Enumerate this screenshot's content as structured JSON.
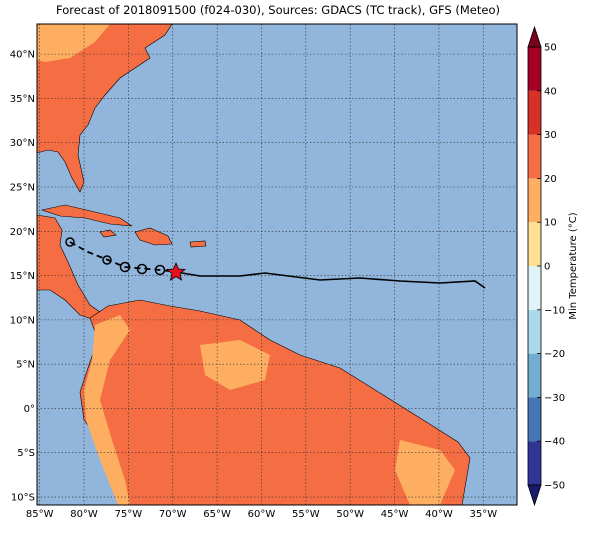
{
  "map": {
    "title": "Forecast of 2018091500 (f024-030), Sources: GDACS (TC track), GFS (Meteo)",
    "xlim": [
      -85.3,
      -31.2
    ],
    "ylim": [
      -10.9,
      43.4
    ],
    "xticks": [
      {
        "value": -85,
        "label": "85°W"
      },
      {
        "value": -80,
        "label": "80°W"
      },
      {
        "value": -75,
        "label": "75°W"
      },
      {
        "value": -70,
        "label": "70°W"
      },
      {
        "value": -65,
        "label": "65°W"
      },
      {
        "value": -60,
        "label": "60°W"
      },
      {
        "value": -55,
        "label": "55°W"
      },
      {
        "value": -50,
        "label": "50°W"
      },
      {
        "value": -45,
        "label": "45°W"
      },
      {
        "value": -40,
        "label": "40°W"
      },
      {
        "value": -35,
        "label": "35°W"
      }
    ],
    "yticks": [
      {
        "value": -10,
        "label": "10°S"
      },
      {
        "value": -5,
        "label": "5°S"
      },
      {
        "value": 0,
        "label": "0°"
      },
      {
        "value": 5,
        "label": "5°N"
      },
      {
        "value": 10,
        "label": "10°N"
      },
      {
        "value": 15,
        "label": "15°N"
      },
      {
        "value": 20,
        "label": "20°N"
      },
      {
        "value": 25,
        "label": "25°N"
      },
      {
        "value": 30,
        "label": "30°N"
      },
      {
        "value": 35,
        "label": "35°N"
      },
      {
        "value": 40,
        "label": "40°N"
      }
    ],
    "grid": true,
    "colorbar": {
      "label": "Min Temperature (°C)",
      "lim": [
        -50,
        50
      ],
      "ticks": [
        {
          "value": -50,
          "label": "−50"
        },
        {
          "value": -40,
          "label": "−40"
        },
        {
          "value": -30,
          "label": "−30"
        },
        {
          "value": -20,
          "label": "−20"
        },
        {
          "value": -10,
          "label": "−10"
        },
        0,
        10,
        20,
        30,
        40,
        50
      ],
      "colors": [
        "#313695",
        "#4575b4",
        "#74add1",
        "#abd9e9",
        "#e0f3f8",
        "#fee090",
        "#fdae61",
        "#f46d43",
        "#d73027",
        "#a50026"
      ],
      "extend_colors": [
        "#1a1a6e",
        "#7a0020"
      ]
    }
  }
}
